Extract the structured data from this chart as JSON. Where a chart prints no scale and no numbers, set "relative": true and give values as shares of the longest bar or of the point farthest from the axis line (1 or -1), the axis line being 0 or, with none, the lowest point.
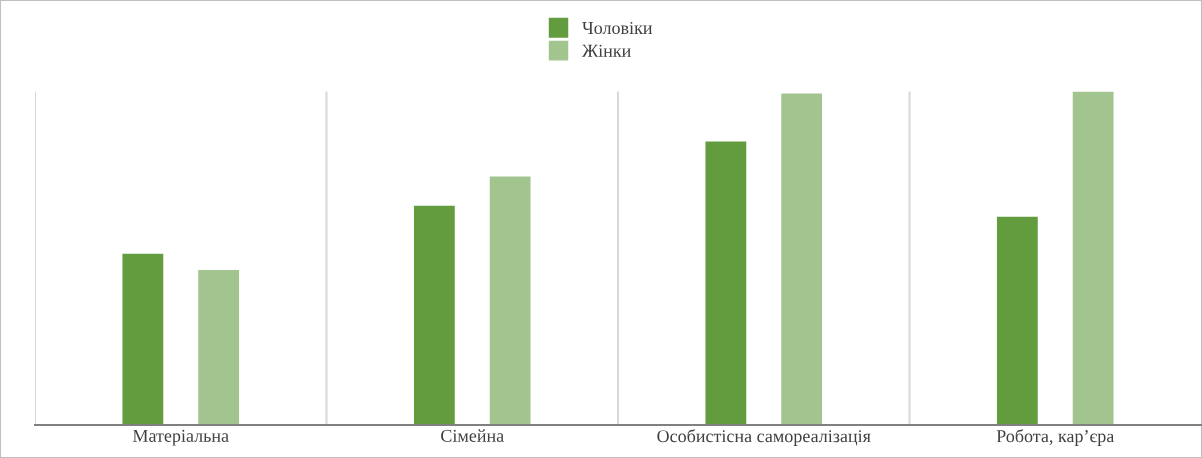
{
  "chart_data": {
    "type": "bar",
    "relative": true,
    "categories": [
      "Матеріальна",
      "Сімейна",
      "Особистісна самореалізація",
      "Робота, кар’єра"
    ],
    "series": [
      {
        "name": "Чоловіки",
        "color": "#629c3f",
        "values": [
          0.514,
          0.658,
          0.85,
          0.625
        ]
      },
      {
        "name": "Жінки",
        "color": "#a2c58f",
        "values": [
          0.465,
          0.745,
          0.994,
          1
        ]
      }
    ],
    "grid": "x",
    "legend": "top"
  }
}
